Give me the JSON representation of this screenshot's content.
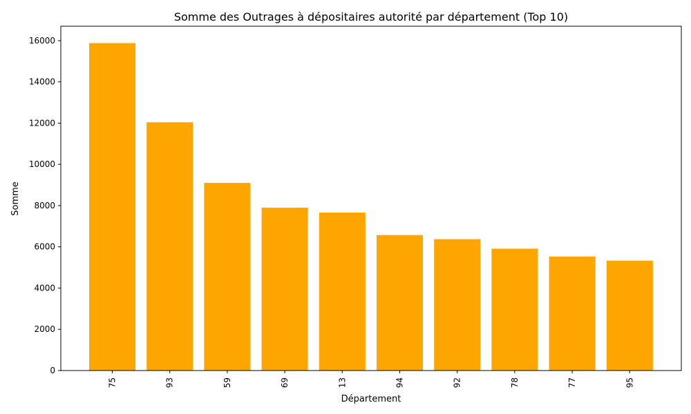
{
  "chart_data": {
    "type": "bar",
    "title": "Somme des Outrages à dépositaires autorité par département (Top 10)",
    "xlabel": "Département",
    "ylabel": "Somme",
    "categories": [
      "75",
      "93",
      "59",
      "69",
      "13",
      "94",
      "92",
      "78",
      "77",
      "95"
    ],
    "values": [
      15880,
      12040,
      9100,
      7900,
      7660,
      6570,
      6370,
      5910,
      5530,
      5330
    ],
    "ylim": [
      0,
      16700
    ],
    "yticks": [
      0,
      2000,
      4000,
      6000,
      8000,
      10000,
      12000,
      14000,
      16000
    ],
    "bar_color": "#FFA500",
    "grid": false,
    "legend": "none"
  }
}
